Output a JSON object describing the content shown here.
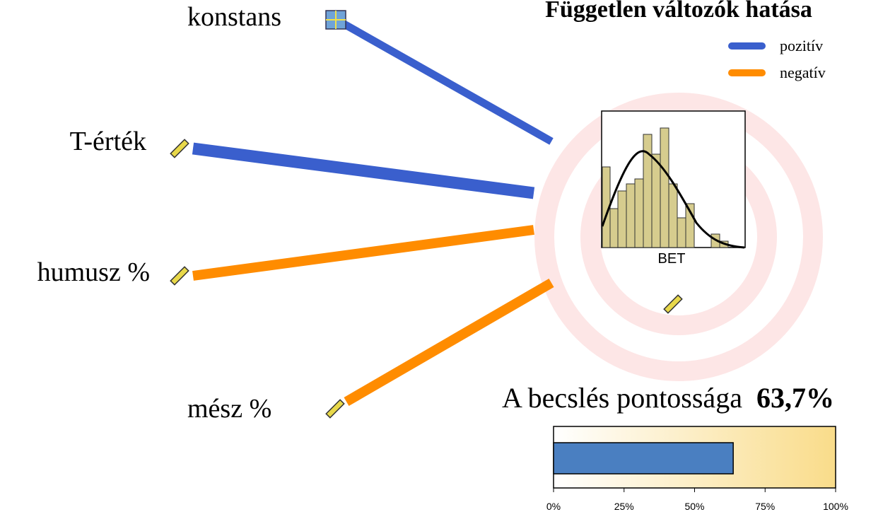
{
  "title": "Független változók hatása",
  "legend": [
    {
      "name": "pozitív",
      "color": "#3a5fcd"
    },
    {
      "name": "negatív",
      "color": "#ff8c00"
    }
  ],
  "target": {
    "label": "BET"
  },
  "predictors": [
    {
      "label": "konstans",
      "color": "#3a5fcd"
    },
    {
      "label": "T-érték",
      "color": "#3a5fcd"
    },
    {
      "label": "humusz %",
      "color": "#ff8c00"
    },
    {
      "label": "mész %",
      "color": "#ff8c00"
    }
  ],
  "chart_data": {
    "type": "bar",
    "title": "A becslés pontossága",
    "values": [
      63.7
    ],
    "value_labels": [
      "63,7%"
    ],
    "color": "#4a7fc1",
    "xlim": [
      0,
      100
    ],
    "xticks": [
      {
        "value": 0,
        "label": "0%"
      },
      {
        "value": 25,
        "label": "25%"
      },
      {
        "value": 50,
        "label": "50%"
      },
      {
        "value": 75,
        "label": "75%"
      },
      {
        "value": 100,
        "label": "100%"
      }
    ]
  }
}
